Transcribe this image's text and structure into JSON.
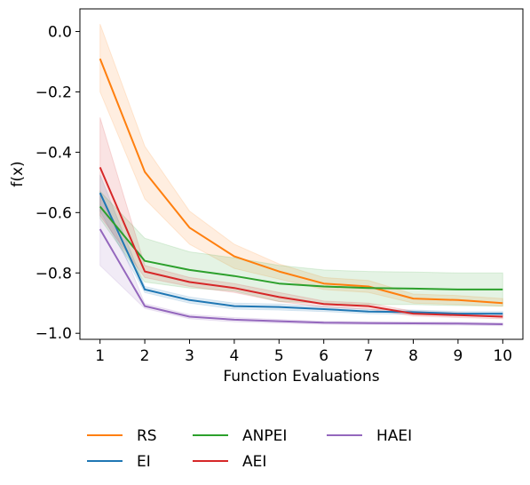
{
  "chart_data": {
    "type": "line",
    "title": "",
    "xlabel": "Function Evaluations",
    "ylabel": "f(x)",
    "x": [
      1,
      2,
      3,
      4,
      5,
      6,
      7,
      8,
      9,
      10
    ],
    "xlim": [
      0.55,
      10.45
    ],
    "ylim": [
      -1.02,
      0.075
    ],
    "xticks": [
      "1",
      "2",
      "3",
      "4",
      "5",
      "6",
      "7",
      "8",
      "9",
      "10"
    ],
    "yticks": [
      {
        "value": 0.0,
        "label": "0.0"
      },
      {
        "value": -0.2,
        "label": "−0.2"
      },
      {
        "value": -0.4,
        "label": "−0.4"
      },
      {
        "value": -0.6,
        "label": "−0.6"
      },
      {
        "value": -0.8,
        "label": "−0.8"
      },
      {
        "value": -1.0,
        "label": "−1.0"
      }
    ],
    "grid": false,
    "legend_placement": "below",
    "series": [
      {
        "name": "RS",
        "color": "#ff7f0e",
        "values": [
          -0.09,
          -0.465,
          -0.65,
          -0.745,
          -0.795,
          -0.835,
          -0.845,
          -0.885,
          -0.89,
          -0.9
        ],
        "lower": [
          -0.2,
          -0.555,
          -0.705,
          -0.785,
          -0.82,
          -0.855,
          -0.865,
          -0.9,
          -0.905,
          -0.91
        ],
        "upper": [
          0.025,
          -0.38,
          -0.595,
          -0.705,
          -0.77,
          -0.815,
          -0.825,
          -0.87,
          -0.875,
          -0.885
        ]
      },
      {
        "name": "EI",
        "color": "#1f77b4",
        "values": [
          -0.535,
          -0.855,
          -0.89,
          -0.91,
          -0.913,
          -0.92,
          -0.928,
          -0.93,
          -0.935,
          -0.935
        ],
        "lower": [
          -0.595,
          -0.865,
          -0.9,
          -0.92,
          -0.923,
          -0.928,
          -0.935,
          -0.937,
          -0.942,
          -0.942
        ],
        "upper": [
          -0.475,
          -0.845,
          -0.88,
          -0.9,
          -0.903,
          -0.912,
          -0.921,
          -0.923,
          -0.928,
          -0.928
        ]
      },
      {
        "name": "ANPEI",
        "color": "#2ca02c",
        "values": [
          -0.58,
          -0.76,
          -0.79,
          -0.81,
          -0.835,
          -0.845,
          -0.85,
          -0.852,
          -0.855,
          -0.855
        ],
        "lower": [
          -0.62,
          -0.83,
          -0.85,
          -0.86,
          -0.895,
          -0.9,
          -0.905,
          -0.905,
          -0.908,
          -0.91
        ],
        "upper": [
          -0.53,
          -0.685,
          -0.73,
          -0.75,
          -0.775,
          -0.79,
          -0.795,
          -0.797,
          -0.8,
          -0.8
        ]
      },
      {
        "name": "AEI",
        "color": "#d62728",
        "values": [
          -0.45,
          -0.795,
          -0.83,
          -0.85,
          -0.88,
          -0.903,
          -0.91,
          -0.935,
          -0.94,
          -0.945
        ],
        "lower": [
          -0.61,
          -0.815,
          -0.845,
          -0.865,
          -0.895,
          -0.913,
          -0.92,
          -0.943,
          -0.948,
          -0.952
        ],
        "upper": [
          -0.285,
          -0.775,
          -0.815,
          -0.835,
          -0.865,
          -0.893,
          -0.9,
          -0.927,
          -0.932,
          -0.938
        ]
      },
      {
        "name": "HAEI",
        "color": "#9467bd",
        "values": [
          -0.655,
          -0.91,
          -0.945,
          -0.955,
          -0.96,
          -0.965,
          -0.966,
          -0.967,
          -0.968,
          -0.97
        ],
        "lower": [
          -0.775,
          -0.918,
          -0.952,
          -0.962,
          -0.966,
          -0.97,
          -0.971,
          -0.972,
          -0.973,
          -0.975
        ],
        "upper": [
          -0.535,
          -0.902,
          -0.938,
          -0.948,
          -0.954,
          -0.96,
          -0.961,
          -0.962,
          -0.963,
          -0.965
        ]
      }
    ],
    "legend_order": [
      "RS",
      "EI",
      "ANPEI",
      "AEI",
      "HAEI"
    ]
  }
}
